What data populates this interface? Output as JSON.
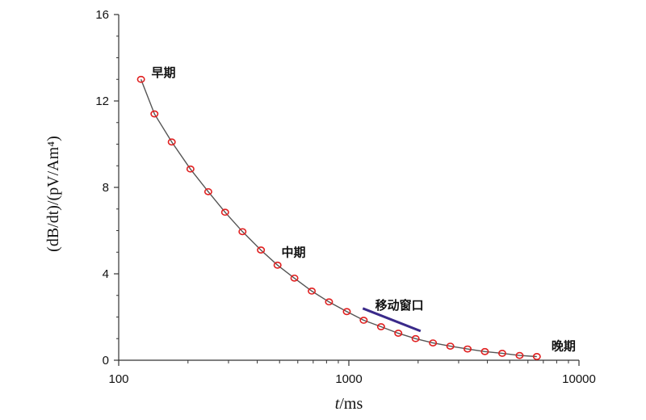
{
  "chart_data": {
    "type": "line",
    "xscale": "log",
    "xlim": [
      100,
      10000
    ],
    "ylim": [
      0,
      16
    ],
    "xticks": [
      {
        "value": 100,
        "label": "100"
      },
      {
        "value": 1000,
        "label": "1000"
      },
      {
        "value": 10000,
        "label": "10000"
      }
    ],
    "yticks": [
      {
        "value": 0,
        "label": "0"
      },
      {
        "value": 4,
        "label": "4"
      },
      {
        "value": 8,
        "label": "8"
      },
      {
        "value": 12,
        "label": "12"
      },
      {
        "value": 16,
        "label": "16"
      }
    ],
    "xlabel": {
      "italic": "t",
      "rest": "/ms"
    },
    "ylabel": "(dB/dt)/(pV/Am⁴)",
    "grid": false,
    "series": [
      {
        "x": [
          125,
          143,
          170,
          205,
          245,
          290,
          345,
          415,
          490,
          580,
          690,
          820,
          980,
          1160,
          1380,
          1640,
          1950,
          2320,
          2760,
          3280,
          3900,
          4640,
          5520,
          6560
        ],
        "y": [
          13.0,
          11.4,
          10.1,
          8.85,
          7.8,
          6.85,
          5.95,
          5.1,
          4.4,
          3.8,
          3.2,
          2.7,
          2.25,
          1.85,
          1.55,
          1.25,
          1.0,
          0.8,
          0.65,
          0.52,
          0.4,
          0.32,
          0.22,
          0.17
        ],
        "line_color": "#555555",
        "marker_color": "#e02020"
      }
    ],
    "annotations": [
      {
        "text": "早期",
        "x": 128,
        "y": 13.3
      },
      {
        "text": "中期",
        "x": 470,
        "y": 5.0
      },
      {
        "text": "移动窗口",
        "x": 1200,
        "y": 2.55
      },
      {
        "text": "晚期",
        "x": 7000,
        "y": 0.65
      }
    ],
    "window_segment": {
      "x": [
        1150,
        2050
      ],
      "y": [
        2.4,
        1.35
      ],
      "color": "#3a2a8a"
    }
  }
}
